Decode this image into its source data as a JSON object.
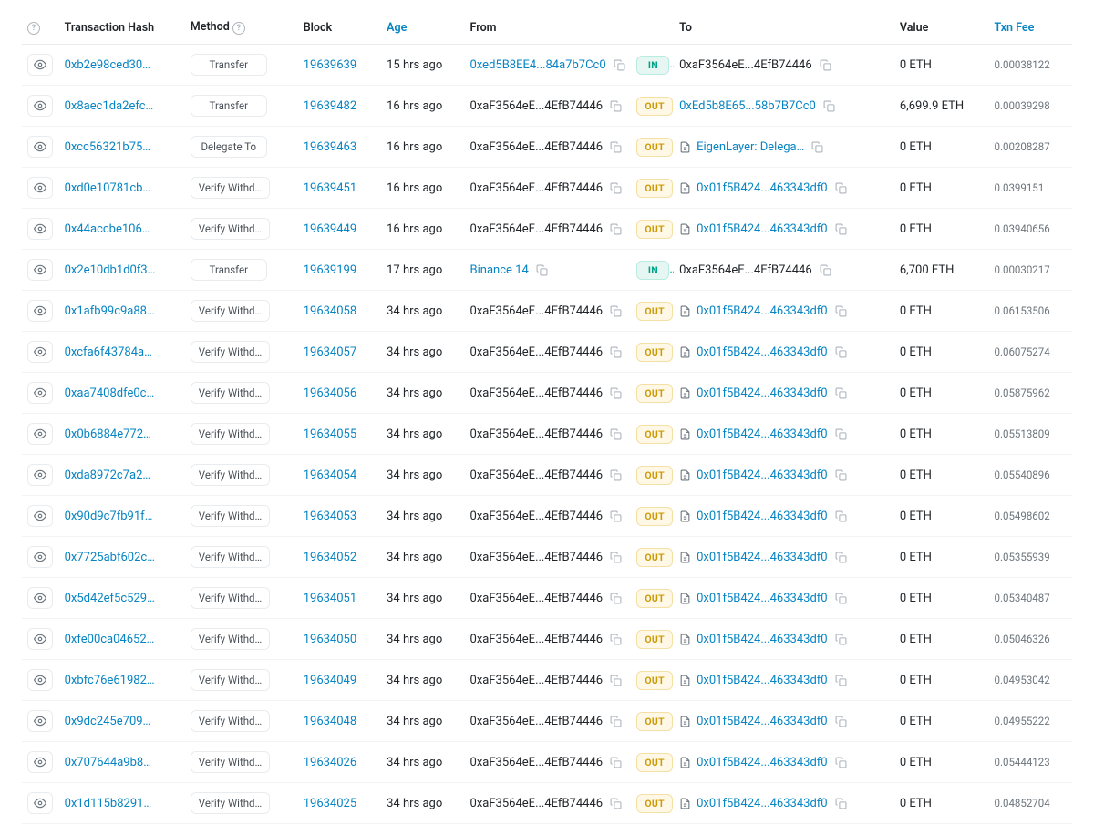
{
  "columns": {
    "hash": "Transaction Hash",
    "method": "Method",
    "block": "Block",
    "age": "Age",
    "from": "From",
    "to": "To",
    "value": "Value",
    "fee": "Txn Fee"
  },
  "colors": {
    "link": "#0784c3",
    "in_bg": "#e6f7f3",
    "in_fg": "#00a186",
    "out_bg": "#fff8e6",
    "out_fg": "#cc9a06",
    "border": "#e9ecef",
    "muted": "#6c757d"
  },
  "rows": [
    {
      "hash": "0xb2e98ced30…",
      "method": "Transfer",
      "block": "19639639",
      "age": "15 hrs ago",
      "from": "0xed5B8EE4...84a7b7Cc0",
      "fromLink": true,
      "dir": "IN",
      "to": "0xaF3564eE...4EfB74446",
      "toLink": false,
      "toDoc": false,
      "value": "0 ETH",
      "fee": "0.00038122"
    },
    {
      "hash": "0x8aec1da2efc…",
      "method": "Transfer",
      "block": "19639482",
      "age": "16 hrs ago",
      "from": "0xaF3564eE...4EfB74446",
      "fromLink": false,
      "dir": "OUT",
      "to": "0xEd5b8E65...58b7B7Cc0",
      "toLink": true,
      "toDoc": false,
      "value": "6,699.9 ETH",
      "fee": "0.00039298"
    },
    {
      "hash": "0xcc56321b75…",
      "method": "Delegate To",
      "block": "19639463",
      "age": "16 hrs ago",
      "from": "0xaF3564eE...4EfB74446",
      "fromLink": false,
      "dir": "OUT",
      "to": "EigenLayer: Delega…",
      "toLink": true,
      "toDoc": true,
      "value": "0 ETH",
      "fee": "0.00208287"
    },
    {
      "hash": "0xd0e10781cb…",
      "method": "Verify Withd…",
      "block": "19639451",
      "age": "16 hrs ago",
      "from": "0xaF3564eE...4EfB74446",
      "fromLink": false,
      "dir": "OUT",
      "to": "0x01f5B424...463343df0",
      "toLink": true,
      "toDoc": true,
      "value": "0 ETH",
      "fee": "0.0399151"
    },
    {
      "hash": "0x44accbe106…",
      "method": "Verify Withd…",
      "block": "19639449",
      "age": "16 hrs ago",
      "from": "0xaF3564eE...4EfB74446",
      "fromLink": false,
      "dir": "OUT",
      "to": "0x01f5B424...463343df0",
      "toLink": true,
      "toDoc": true,
      "value": "0 ETH",
      "fee": "0.03940656"
    },
    {
      "hash": "0x2e10db1d0f3…",
      "method": "Transfer",
      "block": "19639199",
      "age": "17 hrs ago",
      "from": "Binance 14",
      "fromLink": true,
      "dir": "IN",
      "to": "0xaF3564eE...4EfB74446",
      "toLink": false,
      "toDoc": false,
      "value": "6,700 ETH",
      "fee": "0.00030217"
    },
    {
      "hash": "0x1afb99c9a88…",
      "method": "Verify Withd…",
      "block": "19634058",
      "age": "34 hrs ago",
      "from": "0xaF3564eE...4EfB74446",
      "fromLink": false,
      "dir": "OUT",
      "to": "0x01f5B424...463343df0",
      "toLink": true,
      "toDoc": true,
      "value": "0 ETH",
      "fee": "0.06153506"
    },
    {
      "hash": "0xcfa6f43784a…",
      "method": "Verify Withd…",
      "block": "19634057",
      "age": "34 hrs ago",
      "from": "0xaF3564eE...4EfB74446",
      "fromLink": false,
      "dir": "OUT",
      "to": "0x01f5B424...463343df0",
      "toLink": true,
      "toDoc": true,
      "value": "0 ETH",
      "fee": "0.06075274"
    },
    {
      "hash": "0xaa7408dfe0c…",
      "method": "Verify Withd…",
      "block": "19634056",
      "age": "34 hrs ago",
      "from": "0xaF3564eE...4EfB74446",
      "fromLink": false,
      "dir": "OUT",
      "to": "0x01f5B424...463343df0",
      "toLink": true,
      "toDoc": true,
      "value": "0 ETH",
      "fee": "0.05875962"
    },
    {
      "hash": "0x0b6884e772…",
      "method": "Verify Withd…",
      "block": "19634055",
      "age": "34 hrs ago",
      "from": "0xaF3564eE...4EfB74446",
      "fromLink": false,
      "dir": "OUT",
      "to": "0x01f5B424...463343df0",
      "toLink": true,
      "toDoc": true,
      "value": "0 ETH",
      "fee": "0.05513809"
    },
    {
      "hash": "0xda8972c7a2…",
      "method": "Verify Withd…",
      "block": "19634054",
      "age": "34 hrs ago",
      "from": "0xaF3564eE...4EfB74446",
      "fromLink": false,
      "dir": "OUT",
      "to": "0x01f5B424...463343df0",
      "toLink": true,
      "toDoc": true,
      "value": "0 ETH",
      "fee": "0.05540896"
    },
    {
      "hash": "0x90d9c7fb91f…",
      "method": "Verify Withd…",
      "block": "19634053",
      "age": "34 hrs ago",
      "from": "0xaF3564eE...4EfB74446",
      "fromLink": false,
      "dir": "OUT",
      "to": "0x01f5B424...463343df0",
      "toLink": true,
      "toDoc": true,
      "value": "0 ETH",
      "fee": "0.05498602"
    },
    {
      "hash": "0x7725abf602c…",
      "method": "Verify Withd…",
      "block": "19634052",
      "age": "34 hrs ago",
      "from": "0xaF3564eE...4EfB74446",
      "fromLink": false,
      "dir": "OUT",
      "to": "0x01f5B424...463343df0",
      "toLink": true,
      "toDoc": true,
      "value": "0 ETH",
      "fee": "0.05355939"
    },
    {
      "hash": "0x5d42ef5c529…",
      "method": "Verify Withd…",
      "block": "19634051",
      "age": "34 hrs ago",
      "from": "0xaF3564eE...4EfB74446",
      "fromLink": false,
      "dir": "OUT",
      "to": "0x01f5B424...463343df0",
      "toLink": true,
      "toDoc": true,
      "value": "0 ETH",
      "fee": "0.05340487"
    },
    {
      "hash": "0xfe00ca04652…",
      "method": "Verify Withd…",
      "block": "19634050",
      "age": "34 hrs ago",
      "from": "0xaF3564eE...4EfB74446",
      "fromLink": false,
      "dir": "OUT",
      "to": "0x01f5B424...463343df0",
      "toLink": true,
      "toDoc": true,
      "value": "0 ETH",
      "fee": "0.05046326"
    },
    {
      "hash": "0xbfc76e61982…",
      "method": "Verify Withd…",
      "block": "19634049",
      "age": "34 hrs ago",
      "from": "0xaF3564eE...4EfB74446",
      "fromLink": false,
      "dir": "OUT",
      "to": "0x01f5B424...463343df0",
      "toLink": true,
      "toDoc": true,
      "value": "0 ETH",
      "fee": "0.04953042"
    },
    {
      "hash": "0x9dc245e709…",
      "method": "Verify Withd…",
      "block": "19634048",
      "age": "34 hrs ago",
      "from": "0xaF3564eE...4EfB74446",
      "fromLink": false,
      "dir": "OUT",
      "to": "0x01f5B424...463343df0",
      "toLink": true,
      "toDoc": true,
      "value": "0 ETH",
      "fee": "0.04955222"
    },
    {
      "hash": "0x707644a9b8…",
      "method": "Verify Withd…",
      "block": "19634026",
      "age": "34 hrs ago",
      "from": "0xaF3564eE...4EfB74446",
      "fromLink": false,
      "dir": "OUT",
      "to": "0x01f5B424...463343df0",
      "toLink": true,
      "toDoc": true,
      "value": "0 ETH",
      "fee": "0.05444123"
    },
    {
      "hash": "0x1d115b8291…",
      "method": "Verify Withd…",
      "block": "19634025",
      "age": "34 hrs ago",
      "from": "0xaF3564eE...4EfB74446",
      "fromLink": false,
      "dir": "OUT",
      "to": "0x01f5B424...463343df0",
      "toLink": true,
      "toDoc": true,
      "value": "0 ETH",
      "fee": "0.04852704"
    }
  ]
}
